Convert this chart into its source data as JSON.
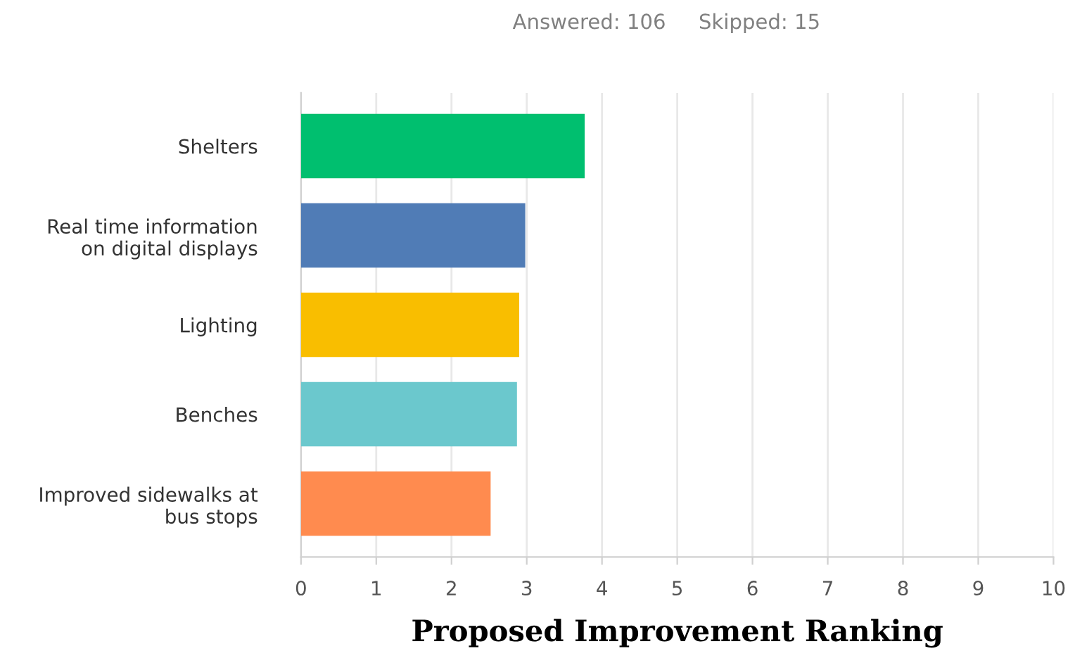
{
  "chart_data": {
    "type": "bar",
    "orientation": "horizontal",
    "subtitle": "Answered: 106     Skipped: 15",
    "xlabel": "Proposed Improvement Ranking",
    "categories": [
      "Shelters",
      "Real time information\non digital displays",
      "Lighting",
      "Benches",
      "Improved sidewalks at\nbus stops"
    ],
    "values": [
      3.77,
      2.98,
      2.9,
      2.87,
      2.52
    ],
    "colors": [
      "#00bf6f",
      "#507cb6",
      "#f9be00",
      "#6bc8cd",
      "#ff8b4f"
    ],
    "xlim": [
      0,
      10
    ],
    "xticks": [
      0,
      1,
      2,
      3,
      4,
      5,
      6,
      7,
      8,
      9,
      10
    ],
    "grid": "x",
    "legend": false
  }
}
